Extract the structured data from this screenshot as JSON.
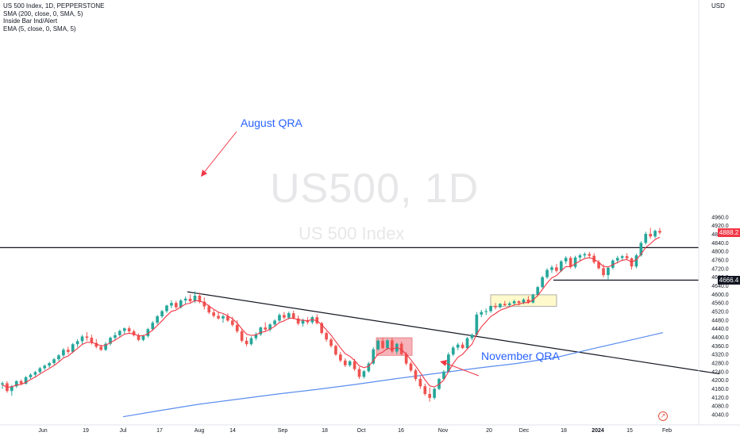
{
  "legend": {
    "title": "US 500 Index, 1D, PEPPERSTONE",
    "sma_label": "SMA (200, close, 0, SMA, 5)",
    "inside_bar_label": "Inside Bar Ind/Alert",
    "ema_label": "EMA (5, close, 0, SMA, 5)"
  },
  "currency_label": "USD",
  "watermark": {
    "symbol": "US500, 1D",
    "description": "US 500 Index"
  },
  "annotations": {
    "august": "August QRA",
    "november": "November QRA"
  },
  "price_tags": {
    "last": "4888.2",
    "support": "4666.4"
  },
  "colors": {
    "up": "#26a69a",
    "down": "#ef5350",
    "ema": "#f23645",
    "sma": "#5b8def",
    "annot_text": "#2962ff",
    "annot_arrow": "#f23645",
    "last_tag": "#f23645",
    "support_tag": "#131722",
    "red_box": "#f5a6ad",
    "yellow_box": "#fff8c5"
  },
  "chart_data": {
    "type": "candlestick",
    "x_ticks": [
      "Jun",
      "19",
      "Jul",
      "17",
      "Aug",
      "14",
      "Sep",
      "18",
      "Oct",
      "16",
      "Nov",
      "20",
      "Dec",
      "18",
      "2024",
      "15",
      "Feb"
    ],
    "y_ticks": [
      4040,
      4080,
      4120,
      4160,
      4200,
      4240,
      4280,
      4320,
      4360,
      4400,
      4440,
      4480,
      4520,
      4560,
      4600,
      4640,
      4680,
      4720,
      4760,
      4800,
      4840,
      4880,
      4920,
      4960
    ],
    "ylim": [
      4025,
      4995
    ],
    "candles": [
      [
        4180,
        4194,
        4160,
        4186
      ],
      [
        4186,
        4196,
        4142,
        4150
      ],
      [
        4150,
        4178,
        4128,
        4172
      ],
      [
        4172,
        4200,
        4164,
        4196
      ],
      [
        4196,
        4204,
        4178,
        4184
      ],
      [
        4184,
        4220,
        4180,
        4214
      ],
      [
        4214,
        4232,
        4206,
        4226
      ],
      [
        4226,
        4244,
        4216,
        4238
      ],
      [
        4238,
        4262,
        4230,
        4256
      ],
      [
        4256,
        4274,
        4248,
        4268
      ],
      [
        4268,
        4286,
        4258,
        4280
      ],
      [
        4280,
        4304,
        4272,
        4298
      ],
      [
        4298,
        4322,
        4288,
        4316
      ],
      [
        4316,
        4350,
        4308,
        4342
      ],
      [
        4342,
        4356,
        4322,
        4332
      ],
      [
        4332,
        4374,
        4326,
        4368
      ],
      [
        4368,
        4392,
        4354,
        4382
      ],
      [
        4382,
        4412,
        4368,
        4404
      ],
      [
        4404,
        4424,
        4384,
        4398
      ],
      [
        4398,
        4412,
        4366,
        4374
      ],
      [
        4374,
        4392,
        4348,
        4356
      ],
      [
        4356,
        4366,
        4336,
        4342
      ],
      [
        4342,
        4378,
        4336,
        4370
      ],
      [
        4370,
        4404,
        4362,
        4398
      ],
      [
        4398,
        4424,
        4388,
        4410
      ],
      [
        4410,
        4436,
        4402,
        4430
      ],
      [
        4430,
        4446,
        4414,
        4442
      ],
      [
        4442,
        4452,
        4418,
        4428
      ],
      [
        4428,
        4436,
        4404,
        4410
      ],
      [
        4410,
        4418,
        4382,
        4388
      ],
      [
        4388,
        4412,
        4382,
        4406
      ],
      [
        4406,
        4444,
        4398,
        4438
      ],
      [
        4438,
        4476,
        4430,
        4468
      ],
      [
        4468,
        4504,
        4460,
        4498
      ],
      [
        4498,
        4528,
        4490,
        4522
      ],
      [
        4522,
        4552,
        4514,
        4548
      ],
      [
        4548,
        4572,
        4536,
        4560
      ],
      [
        4560,
        4570,
        4532,
        4540
      ],
      [
        4540,
        4578,
        4534,
        4572
      ],
      [
        4572,
        4590,
        4556,
        4580
      ],
      [
        4580,
        4600,
        4562,
        4568
      ],
      [
        4568,
        4614,
        4560,
        4594
      ],
      [
        4594,
        4608,
        4558,
        4566
      ],
      [
        4566,
        4586,
        4530,
        4544
      ],
      [
        4544,
        4552,
        4508,
        4516
      ],
      [
        4516,
        4528,
        4492,
        4500
      ],
      [
        4500,
        4520,
        4482,
        4488
      ],
      [
        4488,
        4506,
        4468,
        4498
      ],
      [
        4498,
        4512,
        4472,
        4478
      ],
      [
        4478,
        4496,
        4450,
        4458
      ],
      [
        4458,
        4480,
        4420,
        4428
      ],
      [
        4428,
        4436,
        4376,
        4384
      ],
      [
        4384,
        4402,
        4358,
        4368
      ],
      [
        4368,
        4404,
        4362,
        4396
      ],
      [
        4396,
        4424,
        4386,
        4414
      ],
      [
        4414,
        4450,
        4406,
        4446
      ],
      [
        4446,
        4470,
        4430,
        4436
      ],
      [
        4436,
        4466,
        4426,
        4460
      ],
      [
        4460,
        4484,
        4450,
        4478
      ],
      [
        4478,
        4512,
        4470,
        4504
      ],
      [
        4504,
        4518,
        4484,
        4492
      ],
      [
        4492,
        4520,
        4484,
        4512
      ],
      [
        4512,
        4524,
        4484,
        4488
      ],
      [
        4488,
        4502,
        4456,
        4464
      ],
      [
        4464,
        4488,
        4450,
        4478
      ],
      [
        4478,
        4494,
        4460,
        4470
      ],
      [
        4470,
        4500,
        4462,
        4494
      ],
      [
        4494,
        4508,
        4460,
        4466
      ],
      [
        4466,
        4472,
        4414,
        4420
      ],
      [
        4420,
        4428,
        4380,
        4390
      ],
      [
        4390,
        4398,
        4352,
        4360
      ],
      [
        4360,
        4366,
        4314,
        4320
      ],
      [
        4320,
        4332,
        4284,
        4292
      ],
      [
        4292,
        4302,
        4262,
        4270
      ],
      [
        4270,
        4294,
        4262,
        4288
      ],
      [
        4288,
        4300,
        4244,
        4252
      ],
      [
        4252,
        4262,
        4206,
        4216
      ],
      [
        4216,
        4248,
        4208,
        4242
      ],
      [
        4242,
        4286,
        4236,
        4278
      ],
      [
        4278,
        4354,
        4272,
        4344
      ],
      [
        4344,
        4392,
        4338,
        4384
      ],
      [
        4384,
        4398,
        4344,
        4350
      ],
      [
        4350,
        4392,
        4342,
        4386
      ],
      [
        4386,
        4398,
        4326,
        4334
      ],
      [
        4334,
        4374,
        4322,
        4370
      ],
      [
        4370,
        4380,
        4316,
        4322
      ],
      [
        4322,
        4332,
        4270,
        4278
      ],
      [
        4278,
        4286,
        4238,
        4246
      ],
      [
        4246,
        4254,
        4196,
        4206
      ],
      [
        4206,
        4220,
        4160,
        4172
      ],
      [
        4172,
        4184,
        4128,
        4136
      ],
      [
        4136,
        4166,
        4100,
        4118
      ],
      [
        4118,
        4166,
        4110,
        4160
      ],
      [
        4160,
        4212,
        4154,
        4206
      ],
      [
        4206,
        4248,
        4200,
        4240
      ],
      [
        4240,
        4330,
        4236,
        4320
      ],
      [
        4320,
        4360,
        4312,
        4352
      ],
      [
        4352,
        4374,
        4340,
        4366
      ],
      [
        4366,
        4378,
        4346,
        4350
      ],
      [
        4350,
        4402,
        4346,
        4396
      ],
      [
        4396,
        4418,
        4386,
        4412
      ],
      [
        4412,
        4518,
        4408,
        4506
      ],
      [
        4506,
        4528,
        4494,
        4518
      ],
      [
        4518,
        4534,
        4504,
        4522
      ],
      [
        4522,
        4550,
        4514,
        4546
      ],
      [
        4546,
        4560,
        4530,
        4540
      ],
      [
        4540,
        4560,
        4534,
        4556
      ],
      [
        4556,
        4570,
        4544,
        4550
      ],
      [
        4550,
        4566,
        4542,
        4558
      ],
      [
        4558,
        4576,
        4548,
        4568
      ],
      [
        4568,
        4572,
        4548,
        4560
      ],
      [
        4560,
        4582,
        4554,
        4576
      ],
      [
        4576,
        4592,
        4556,
        4562
      ],
      [
        4562,
        4604,
        4558,
        4598
      ],
      [
        4598,
        4640,
        4590,
        4634
      ],
      [
        4634,
        4686,
        4628,
        4680
      ],
      [
        4680,
        4722,
        4672,
        4714
      ],
      [
        4714,
        4736,
        4700,
        4726
      ],
      [
        4726,
        4742,
        4702,
        4710
      ],
      [
        4710,
        4760,
        4704,
        4754
      ],
      [
        4754,
        4778,
        4742,
        4770
      ],
      [
        4770,
        4778,
        4720,
        4728
      ],
      [
        4728,
        4780,
        4720,
        4772
      ],
      [
        4772,
        4790,
        4756,
        4782
      ],
      [
        4782,
        4796,
        4770,
        4788
      ],
      [
        4788,
        4798,
        4768,
        4780
      ],
      [
        4780,
        4792,
        4742,
        4750
      ],
      [
        4750,
        4760,
        4716,
        4722
      ],
      [
        4722,
        4740,
        4680,
        4690
      ],
      [
        4690,
        4730,
        4670,
        4724
      ],
      [
        4724,
        4764,
        4716,
        4758
      ],
      [
        4758,
        4780,
        4744,
        4770
      ],
      [
        4770,
        4784,
        4756,
        4778
      ],
      [
        4778,
        4792,
        4760,
        4768
      ],
      [
        4768,
        4772,
        4716,
        4730
      ],
      [
        4730,
        4790,
        4722,
        4782
      ],
      [
        4782,
        4848,
        4776,
        4840
      ],
      [
        4840,
        4892,
        4832,
        4882
      ],
      [
        4882,
        4910,
        4860,
        4870
      ],
      [
        4870,
        4902,
        4862,
        4896
      ],
      [
        4896,
        4910,
        4880,
        4888
      ]
    ],
    "ema": [
      4178,
      4168,
      4169,
      4178,
      4180,
      4191,
      4203,
      4215,
      4229,
      4242,
      4255,
      4269,
      4285,
      4304,
      4313,
      4331,
      4348,
      4367,
      4377,
      4376,
      4369,
      4360,
      4363,
      4375,
      4387,
      4401,
      4415,
      4419,
      4416,
      4407,
      4407,
      4417,
      4434,
      4455,
      4477,
      4501,
      4521,
      4527,
      4542,
      4555,
      4559,
      4571,
      4569,
      4561,
      4546,
      4531,
      4517,
      4511,
      4500,
      4486,
      4467,
      4439,
      4415,
      4409,
      4411,
      4423,
      4427,
      4438,
      4451,
      4469,
      4477,
      4489,
      4489,
      4481,
      4480,
      4477,
      4483,
      4477,
      4458,
      4435,
      4410,
      4380,
      4351,
      4324,
      4312,
      4292,
      4267,
      4259,
      4265,
      4291,
      4322,
      4331,
      4349,
      4344,
      4353,
      4343,
      4321,
      4296,
      4266,
      4235,
      4202,
      4174,
      4169,
      4181,
      4201,
      4241,
      4278,
      4307,
      4321,
      4346,
      4368,
      4414,
      4449,
      4473,
      4497,
      4511,
      4526,
      4534,
      4542,
      4551,
      4554,
      4561,
      4562,
      4574,
      4594,
      4623,
      4653,
      4677,
      4688,
      4710,
      4730,
      4729,
      4743,
      4756,
      4767,
      4771,
      4764,
      4750,
      4730,
      4728,
      4738,
      4749,
      4759,
      4762,
      4751,
      4761,
      4787,
      4819,
      4836,
      4856,
      4867
    ],
    "sma200": [
      [
        155.0,
        4030
      ],
      [
        200,
        4058
      ],
      [
        250,
        4088
      ],
      [
        300,
        4112
      ],
      [
        350,
        4136
      ],
      [
        400,
        4158
      ],
      [
        450,
        4182
      ],
      [
        500,
        4208
      ],
      [
        550,
        4232
      ],
      [
        600,
        4256
      ],
      [
        650,
        4278
      ],
      [
        700,
        4306
      ],
      [
        750,
        4350
      ],
      [
        800,
        4392
      ],
      [
        835,
        4422
      ]
    ],
    "levels": [
      4818,
      4666.4
    ],
    "trendline": [
      [
        236,
        4612
      ],
      [
        906,
        4230
      ]
    ],
    "red_zone": {
      "x_from": 474,
      "x_to": 519,
      "price_hi": 4398,
      "price_lo": 4316
    },
    "yellow_zone": {
      "x_from": 618,
      "x_to": 701,
      "price_hi": 4598,
      "price_lo": 4545
    },
    "last_price": 4888.2
  }
}
